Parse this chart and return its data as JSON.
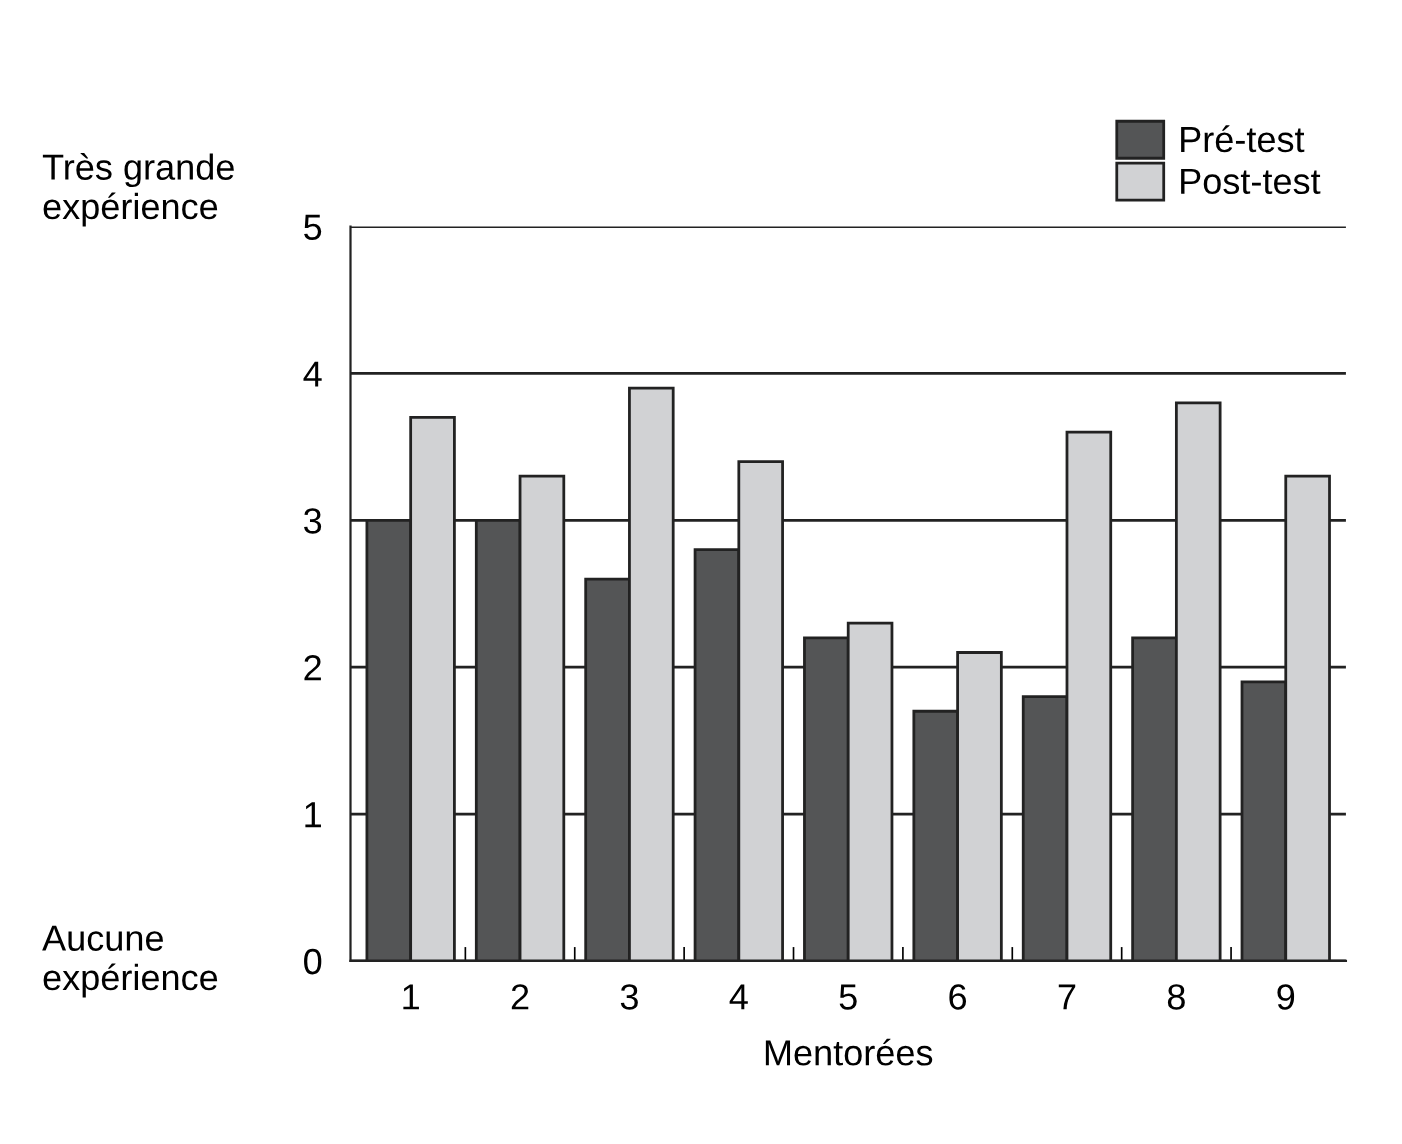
{
  "chart_data": {
    "type": "bar",
    "xlabel": "Mentorées",
    "categories": [
      "1",
      "2",
      "3",
      "4",
      "5",
      "6",
      "7",
      "8",
      "9"
    ],
    "series": [
      {
        "name": "Pré-test",
        "color": "#545556",
        "values": [
          3.0,
          3.0,
          2.6,
          2.8,
          2.2,
          1.7,
          1.8,
          2.2,
          1.9
        ]
      },
      {
        "name": "Post-test",
        "color": "#d1d2d4",
        "values": [
          3.7,
          3.3,
          3.9,
          3.4,
          2.3,
          2.1,
          3.6,
          3.8,
          3.3
        ]
      }
    ],
    "ylim": [
      0,
      5
    ],
    "yticks": [
      0,
      1,
      2,
      3,
      4,
      5
    ],
    "grid": "y",
    "legend": "top right",
    "annotations": [
      "Très grande\nexpérience",
      "Aucune\nexpérience"
    ]
  }
}
